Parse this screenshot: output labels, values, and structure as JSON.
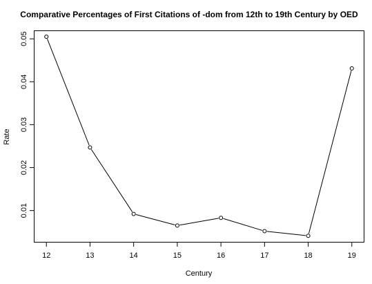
{
  "chart_data": {
    "type": "line",
    "title": "Comparative Percentages of First Citations of -dom from 12th to 19th Century by OED",
    "xlabel": "Century",
    "ylabel": "Rate",
    "x": [
      12,
      13,
      14,
      15,
      16,
      17,
      18,
      19
    ],
    "series": [
      {
        "values": [
          0.0505,
          0.0247,
          0.0092,
          0.0065,
          0.0083,
          0.0052,
          0.0041,
          0.0431
        ]
      }
    ],
    "xlim": [
      11.72,
      19.28
    ],
    "ylim": [
      0.00262,
      0.05188
    ],
    "x_ticks": [
      12,
      13,
      14,
      15,
      16,
      17,
      18,
      19
    ],
    "y_ticks": [
      0.01,
      0.02,
      0.03,
      0.04,
      0.05
    ],
    "y_tick_labels": [
      "0.01",
      "0.02",
      "0.03",
      "0.04",
      "0.05"
    ],
    "grid": false,
    "markers": "open-circle",
    "colors": {
      "line": "#000000",
      "marker_fill": "#ffffff",
      "background": "#ffffff"
    }
  }
}
